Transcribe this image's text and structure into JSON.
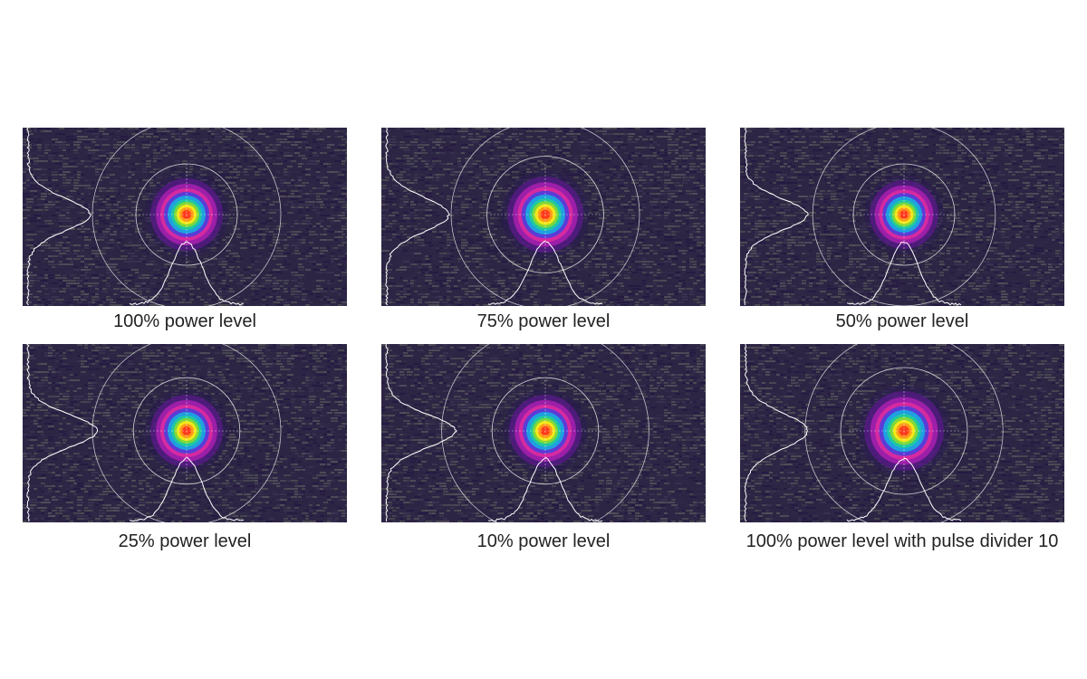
{
  "panels": [
    {
      "caption": "100% power level",
      "spot_scale": 1.0,
      "inner_ring_scale": 1.0,
      "outer_ring_scale": 1.0,
      "x_profile_peak": 0.72,
      "y_profile_peak": 0.95
    },
    {
      "caption": "75% power level",
      "spot_scale": 1.05,
      "inner_ring_scale": 1.15,
      "outer_ring_scale": 1.0,
      "x_profile_peak": 0.72,
      "y_profile_peak": 0.95
    },
    {
      "caption": "50% power level",
      "spot_scale": 0.95,
      "inner_ring_scale": 1.0,
      "outer_ring_scale": 0.97,
      "x_profile_peak": 0.72,
      "y_profile_peak": 0.95
    },
    {
      "caption": "25% power level",
      "spot_scale": 1.0,
      "inner_ring_scale": 1.05,
      "outer_ring_scale": 1.0,
      "x_profile_peak": 0.8,
      "y_profile_peak": 0.95
    },
    {
      "caption": "10% power level",
      "spot_scale": 1.0,
      "inner_ring_scale": 1.05,
      "outer_ring_scale": 1.1,
      "x_profile_peak": 0.8,
      "y_profile_peak": 0.95
    },
    {
      "caption": "100% power level with pulse divider 10",
      "spot_scale": 1.1,
      "inner_ring_scale": 1.25,
      "outer_ring_scale": 1.05,
      "x_profile_peak": 0.72,
      "y_profile_peak": 0.95
    }
  ],
  "colors": {
    "background": "#2d2544",
    "profile_line": "#ffffff",
    "rings": "#e8e8e8",
    "colormap": [
      "#2a1a55",
      "#5a1a8a",
      "#9b1fa8",
      "#d62aa0",
      "#5a3cd6",
      "#1fa0e0",
      "#20c8a0",
      "#7fd83a",
      "#f2e81a",
      "#ff9a1a",
      "#ff3a1a"
    ]
  }
}
